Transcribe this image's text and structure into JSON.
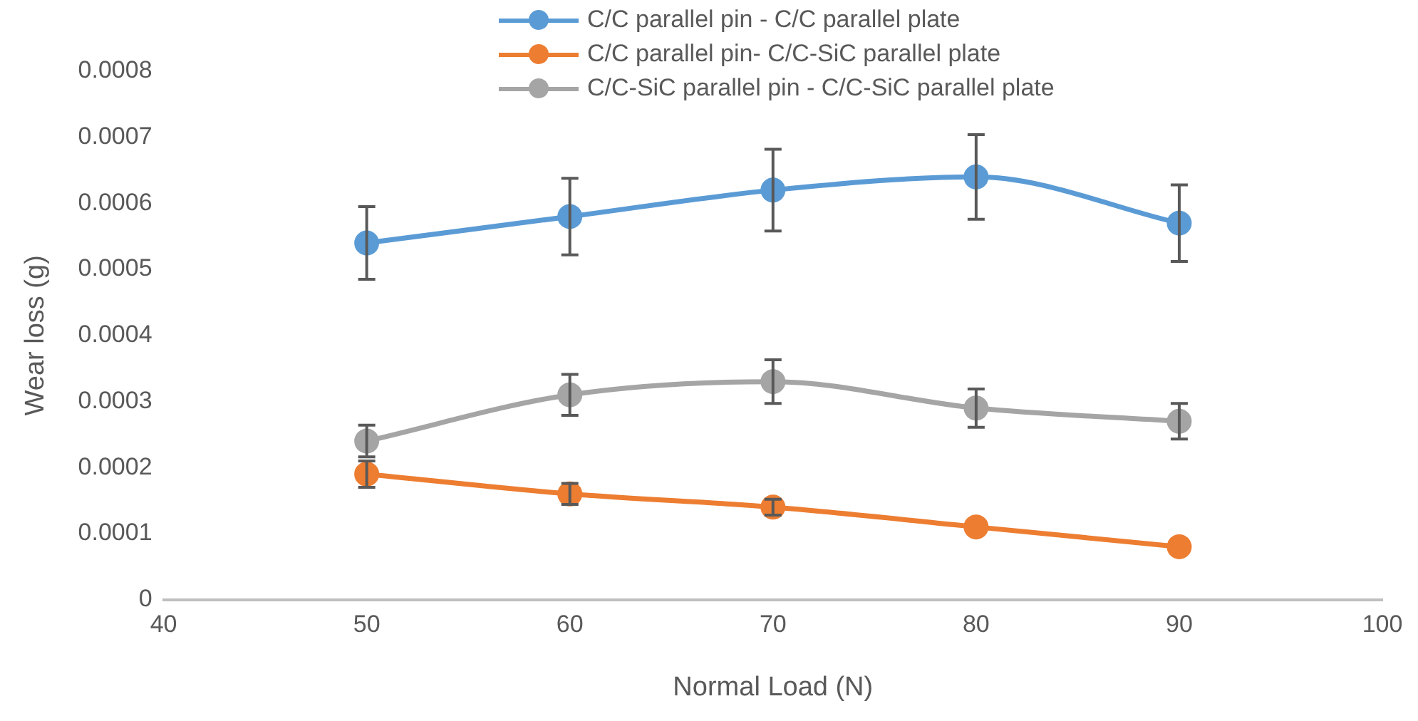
{
  "chart_data": {
    "type": "line",
    "xlabel": "Normal Load (N)",
    "ylabel": "Wear loss (g)",
    "x": [
      50,
      60,
      70,
      80,
      90
    ],
    "series": [
      {
        "name": "C/C parallel pin - C/C parallel plate",
        "color": "#5b9bd5",
        "values": [
          0.00054,
          0.00058,
          0.00062,
          0.00064,
          0.00057
        ],
        "errors": [
          5.5e-05,
          5.8e-05,
          6.2e-05,
          6.4e-05,
          5.8e-05
        ]
      },
      {
        "name": "C/C parallel pin- C/C-SiC parallel plate",
        "color": "#ed7d31",
        "values": [
          0.00019,
          0.00016,
          0.00014,
          0.00011,
          8e-05
        ],
        "errors": [
          2e-05,
          1.6e-05,
          1.2e-05,
          null,
          null
        ]
      },
      {
        "name": "C/C-SiC parallel pin - C/C-SiC parallel plate",
        "color": "#a5a5a5",
        "values": [
          0.00024,
          0.00031,
          0.00033,
          0.00029,
          0.00027
        ],
        "errors": [
          2.4e-05,
          3.1e-05,
          3.3e-05,
          2.9e-05,
          2.7e-05
        ]
      }
    ],
    "xlim": [
      40,
      100
    ],
    "xticks": [
      40,
      50,
      60,
      70,
      80,
      90,
      100
    ],
    "ylim": [
      0,
      0.0008
    ],
    "yticks": [
      0,
      0.0001,
      0.0002,
      0.0003,
      0.0004,
      0.0005,
      0.0006,
      0.0007,
      0.0008
    ],
    "grid": false,
    "legend": "top",
    "marker": "circle",
    "line_style": "solid"
  }
}
